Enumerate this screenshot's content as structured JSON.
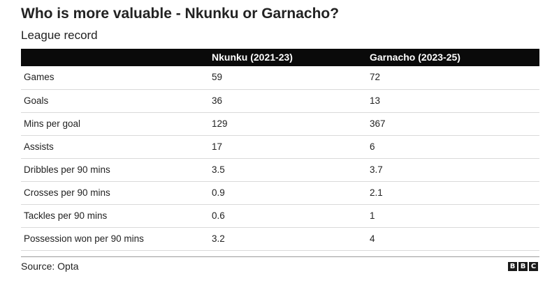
{
  "chart_data": {
    "type": "table",
    "title": "Who is more valuable - Nkunku or Garnacho?",
    "subtitle": "League record",
    "columns": [
      "",
      "Nkunku (2021-23)",
      "Garnacho (2023-25)"
    ],
    "rows": [
      {
        "label": "Games",
        "values": [
          "59",
          "72"
        ]
      },
      {
        "label": "Goals",
        "values": [
          "36",
          "13"
        ]
      },
      {
        "label": "Mins per goal",
        "values": [
          "129",
          "367"
        ]
      },
      {
        "label": "Assists",
        "values": [
          "17",
          "6"
        ]
      },
      {
        "label": "Dribbles per 90 mins",
        "values": [
          "3.5",
          "3.7"
        ]
      },
      {
        "label": "Crosses per 90 mins",
        "values": [
          "0.9",
          "2.1"
        ]
      },
      {
        "label": "Tackles per 90 mins",
        "values": [
          "0.6",
          "1"
        ]
      },
      {
        "label": "Possession won per 90 mins",
        "values": [
          "3.2",
          "4"
        ]
      }
    ],
    "source": "Source: Opta"
  },
  "logo": {
    "letters": [
      "B",
      "B",
      "C"
    ]
  },
  "colors": {
    "header_bg": "#0a0a0a",
    "header_text": "#ffffff",
    "row_divider": "#d9d9d9",
    "text": "#222222"
  }
}
